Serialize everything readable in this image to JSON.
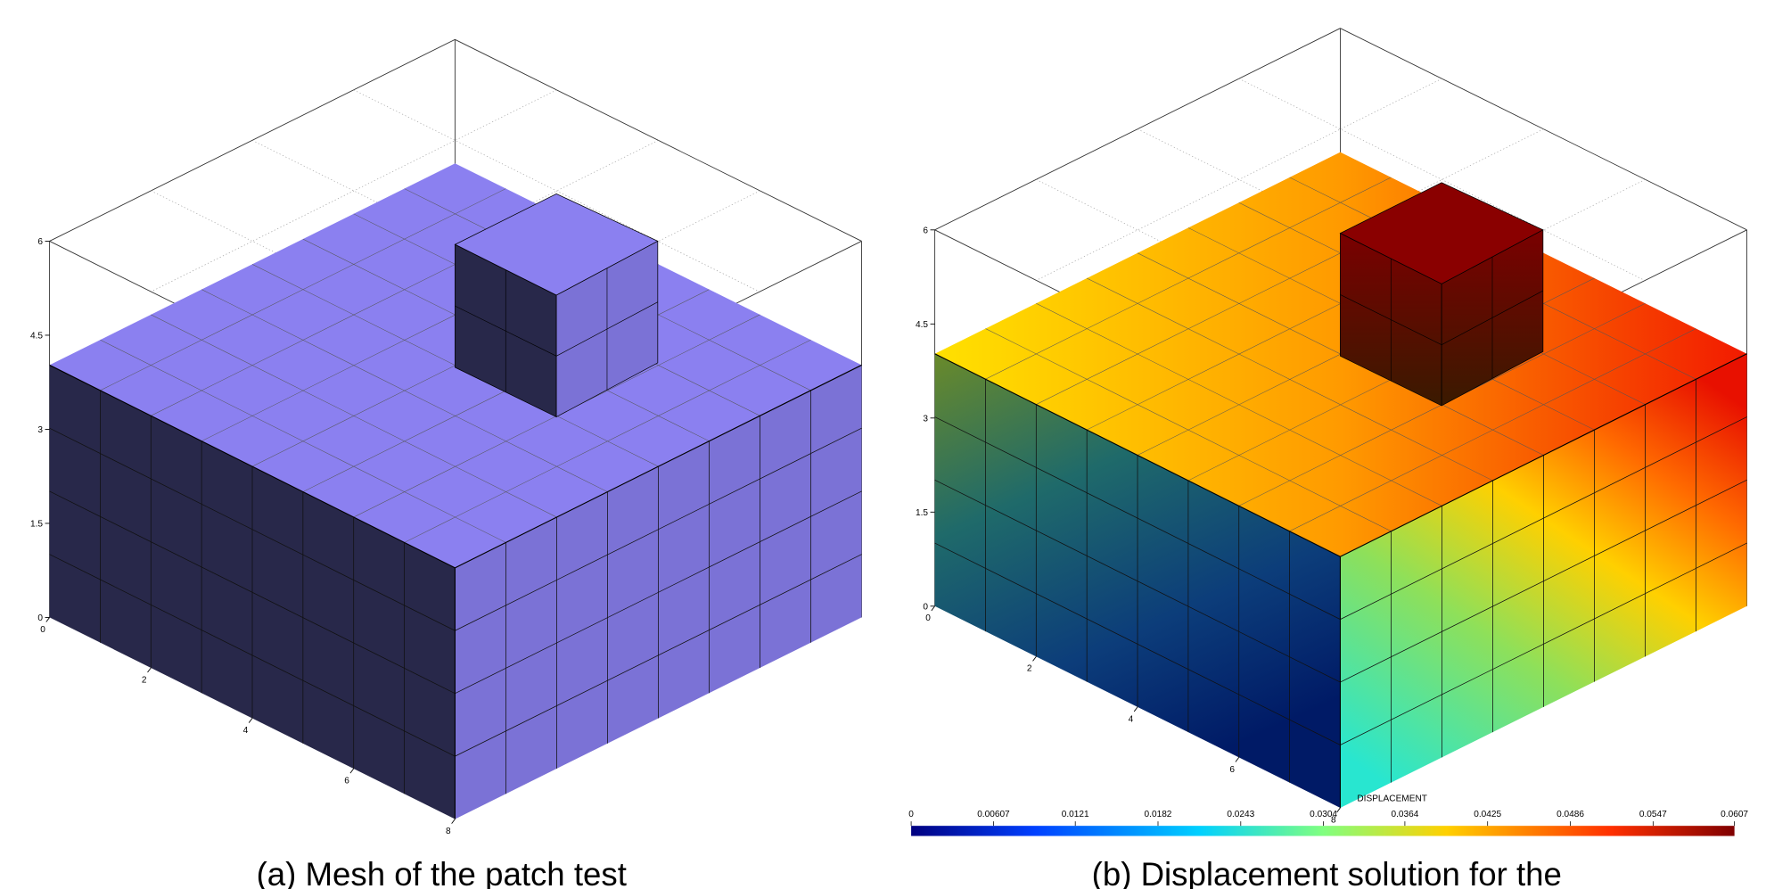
{
  "panels": [
    {
      "caption": "(a) Mesh of the patch test",
      "zticks": [
        0,
        1.5,
        3,
        4.5,
        6
      ],
      "xticks": [
        0,
        2,
        4,
        6,
        8
      ]
    },
    {
      "caption": "(b) Displacement solution for the",
      "zticks": [
        0,
        1.5,
        3,
        4.5,
        6
      ],
      "xticks": [
        0,
        2,
        4,
        6,
        8
      ],
      "colorbar": {
        "title": "DISPLACEMENT",
        "ticks": [
          0,
          0.00607,
          0.0121,
          0.0182,
          0.0243,
          0.0304,
          0.0364,
          0.0425,
          0.0486,
          0.0547,
          0.0607
        ]
      }
    }
  ]
}
